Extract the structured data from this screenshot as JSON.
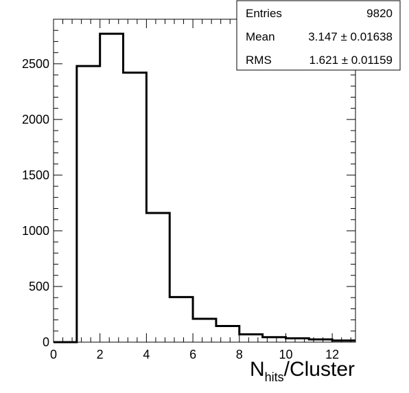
{
  "chart_data": {
    "type": "histogram",
    "xlabel_main": "N",
    "xlabel_sub": "hits",
    "xlabel_tail": "/Cluster",
    "xlim": [
      0,
      13
    ],
    "ylim": [
      0,
      2900
    ],
    "x_ticks": [
      0,
      2,
      4,
      6,
      8,
      10,
      12
    ],
    "x_tick_labels": [
      "0",
      "2",
      "4",
      "6",
      "8",
      "10",
      "12"
    ],
    "y_ticks": [
      0,
      500,
      1000,
      1500,
      2000,
      2500
    ],
    "y_tick_labels": [
      "0",
      "500",
      "1000",
      "1500",
      "2000",
      "2500"
    ],
    "bins": [
      {
        "x0": 0,
        "x1": 1,
        "value": 0
      },
      {
        "x0": 1,
        "x1": 2,
        "value": 2480
      },
      {
        "x0": 2,
        "x1": 3,
        "value": 2770
      },
      {
        "x0": 3,
        "x1": 4,
        "value": 2420
      },
      {
        "x0": 4,
        "x1": 5,
        "value": 1160
      },
      {
        "x0": 5,
        "x1": 6,
        "value": 405
      },
      {
        "x0": 6,
        "x1": 7,
        "value": 210
      },
      {
        "x0": 7,
        "x1": 8,
        "value": 145
      },
      {
        "x0": 8,
        "x1": 9,
        "value": 70
      },
      {
        "x0": 9,
        "x1": 10,
        "value": 45
      },
      {
        "x0": 10,
        "x1": 11,
        "value": 35
      },
      {
        "x0": 11,
        "x1": 12,
        "value": 25
      },
      {
        "x0": 12,
        "x1": 13,
        "value": 15
      }
    ],
    "stats": {
      "rows": [
        {
          "label": "Entries",
          "value": "9820"
        },
        {
          "label": "Mean",
          "value": "3.147 ± 0.01638"
        },
        {
          "label": "RMS",
          "value": "1.621 ± 0.01159"
        }
      ],
      "placement": "top-right"
    },
    "grid": false,
    "legend": "none"
  }
}
